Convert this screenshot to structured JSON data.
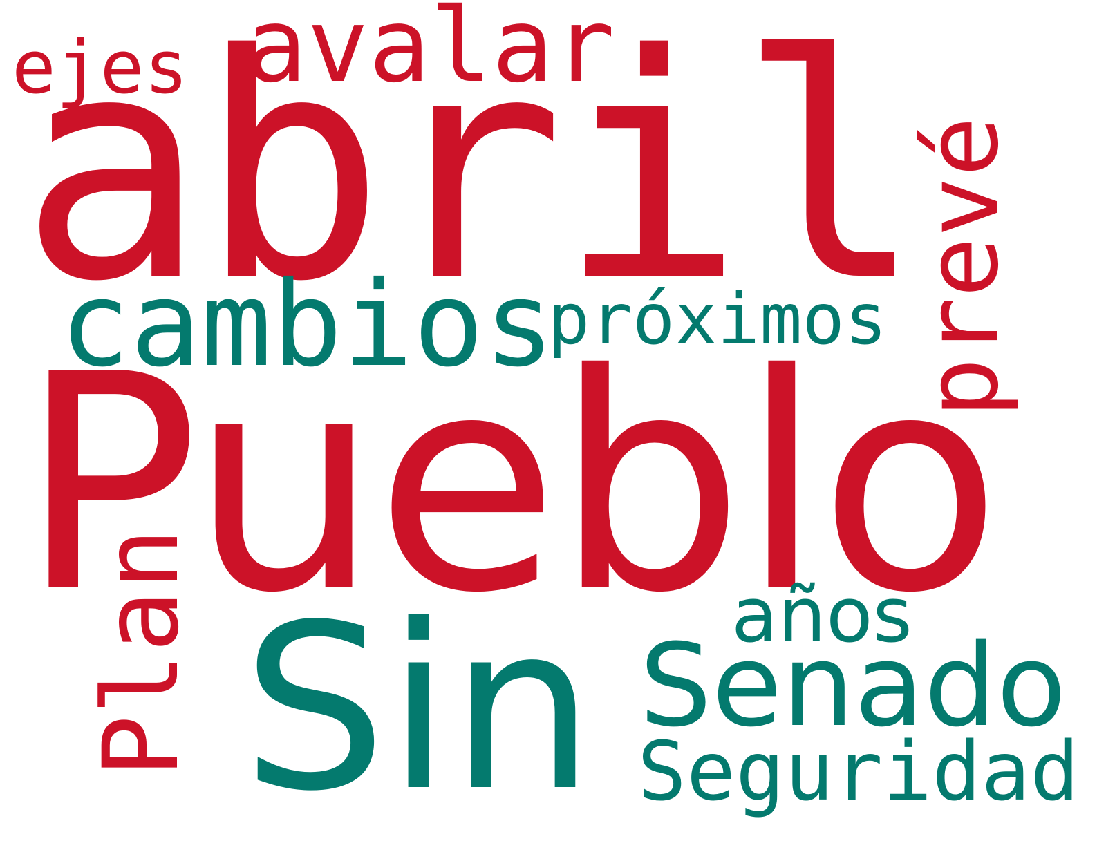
{
  "palette": {
    "red": "#cc1228",
    "teal": "#047a6e"
  },
  "words": {
    "pueblo": "Pueblo",
    "abril": "abril",
    "sin": "Sin",
    "senado": "Senado",
    "seguridad": "Seguridad",
    "cambios": "cambios",
    "proximos": "próximos",
    "anos": "años",
    "avalar": "avalar",
    "ejes": "ejes",
    "preve": "prevé",
    "plan": "Plan"
  }
}
